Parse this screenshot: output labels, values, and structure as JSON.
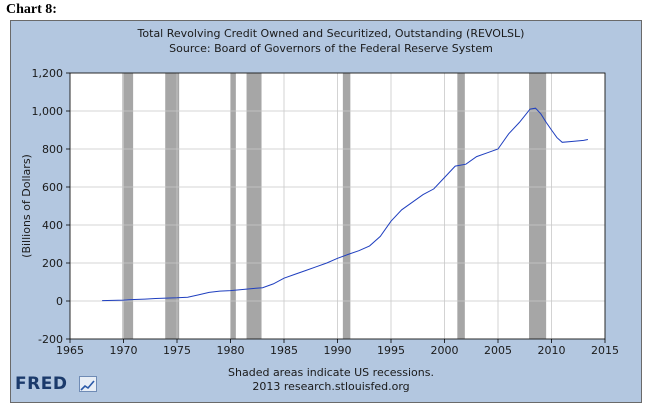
{
  "document": {
    "caption": "Chart 8:"
  },
  "logo": {
    "text": "FRED"
  },
  "colors": {
    "panel": "#b3c7e0",
    "plot": "#ffffff",
    "recession": "#a6a6a6",
    "line": "#1f3fbf",
    "grid": "#c8c8c8"
  },
  "chart_data": {
    "type": "line",
    "title": "Total Revolving Credit Owned and Securitized, Outstanding (REVOLSL)",
    "subtitle": "Source: Board of Governors of the Federal Reserve System",
    "ylabel": "(Billions of Dollars)",
    "xlabel": "",
    "footer": [
      "Shaded areas indicate US recessions.",
      "2013 research.stlouisfed.org"
    ],
    "xlim": [
      1965,
      2015
    ],
    "ylim": [
      -200,
      1200
    ],
    "x_ticks": [
      "1965",
      "1970",
      "1975",
      "1980",
      "1985",
      "1990",
      "1995",
      "2000",
      "2005",
      "2010",
      "2015"
    ],
    "y_ticks": [
      "-200",
      "0",
      "200",
      "400",
      "600",
      "800",
      "1,000",
      "1,200"
    ],
    "grid": true,
    "recessions": [
      [
        1969.9,
        1970.9
      ],
      [
        1973.9,
        1975.2
      ],
      [
        1980.0,
        1980.5
      ],
      [
        1981.5,
        1982.9
      ],
      [
        1990.5,
        1991.2
      ],
      [
        2001.2,
        2001.9
      ],
      [
        2007.9,
        2009.5
      ]
    ],
    "series": [
      {
        "x": [
          1968.0,
          1969.0,
          1970.0,
          1971.0,
          1972.0,
          1973.0,
          1974.0,
          1975.0,
          1976.0,
          1977.0,
          1978.0,
          1979.0,
          1980.0,
          1981.0,
          1982.0,
          1983.0,
          1984.0,
          1985.0,
          1986.0,
          1987.0,
          1988.0,
          1989.0,
          1990.0,
          1991.0,
          1992.0,
          1993.0,
          1994.0,
          1995.0,
          1996.0,
          1997.0,
          1998.0,
          1999.0,
          2000.0,
          2001.0,
          2002.0,
          2003.0,
          2004.0,
          2005.0,
          2006.0,
          2007.0,
          2008.0,
          2008.5,
          2009.0,
          2009.5,
          2010.0,
          2010.5,
          2011.0,
          2012.0,
          2013.0,
          2013.4
        ],
        "values": [
          2,
          3,
          5,
          8,
          10,
          13,
          15,
          17,
          20,
          32,
          45,
          52,
          55,
          60,
          65,
          70,
          90,
          120,
          140,
          160,
          180,
          200,
          225,
          245,
          265,
          290,
          340,
          420,
          480,
          520,
          560,
          590,
          650,
          710,
          720,
          760,
          780,
          800,
          880,
          940,
          1010,
          1015,
          985,
          940,
          900,
          860,
          835,
          840,
          845,
          850
        ]
      }
    ]
  }
}
